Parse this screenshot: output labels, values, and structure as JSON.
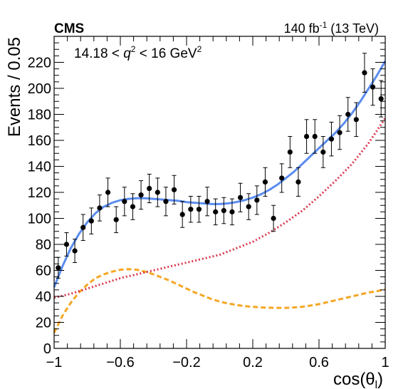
{
  "chart_data": {
    "type": "scatter",
    "experiment_label": "CMS",
    "luminosity_label": {
      "value": "140 fb",
      "exponent": "-1",
      "energy": "(13 TeV)"
    },
    "annotation": {
      "prefix": "14.18 < ",
      "variable": "q",
      "variable_exponent": "2",
      "suffix": " < 16 GeV",
      "unit_exponent": "2"
    },
    "xlabel": {
      "text": "cos(θ",
      "subscript": "l",
      "close": ")"
    },
    "ylabel": "Events / 0.05",
    "xlim": [
      -1,
      1
    ],
    "ylim": [
      0,
      240
    ],
    "x_ticks": [
      -1,
      -0.6,
      -0.2,
      0.2,
      0.6,
      1
    ],
    "x_tick_labels": [
      "−1",
      "−0.6",
      "−0.2",
      "0.2",
      "0.6",
      "1"
    ],
    "y_ticks": [
      0,
      20,
      40,
      60,
      80,
      100,
      120,
      140,
      160,
      180,
      200,
      220
    ],
    "y_tick_labels": [
      "0",
      "20",
      "40",
      "60",
      "80",
      "100",
      "120",
      "140",
      "160",
      "180",
      "200",
      "220"
    ],
    "grid": false,
    "series": [
      {
        "kind": "data",
        "style": "points-with-errorbars",
        "color": "#000000",
        "x": [
          -0.975,
          -0.925,
          -0.875,
          -0.825,
          -0.775,
          -0.725,
          -0.675,
          -0.625,
          -0.575,
          -0.525,
          -0.475,
          -0.425,
          -0.375,
          -0.325,
          -0.275,
          -0.225,
          -0.175,
          -0.125,
          -0.075,
          -0.025,
          0.025,
          0.075,
          0.125,
          0.175,
          0.225,
          0.275,
          0.325,
          0.375,
          0.425,
          0.475,
          0.525,
          0.575,
          0.625,
          0.675,
          0.725,
          0.775,
          0.825,
          0.875,
          0.925,
          0.975
        ],
        "y": [
          62,
          80,
          75,
          93,
          98,
          108,
          120,
          99,
          113,
          109,
          118,
          123,
          120,
          113,
          122,
          103,
          107,
          107,
          113,
          105,
          106,
          105,
          116,
          109,
          114,
          128,
          100,
          131,
          151,
          128,
          163,
          163,
          151,
          161,
          166,
          180,
          176,
          212,
          201,
          192
        ],
        "y_err": [
          8,
          9,
          9,
          10,
          10,
          10,
          11,
          10,
          11,
          10,
          11,
          11,
          11,
          11,
          11,
          10,
          10,
          10,
          11,
          10,
          10,
          10,
          11,
          10,
          11,
          11,
          10,
          11,
          12,
          11,
          13,
          13,
          12,
          13,
          13,
          13,
          13,
          15,
          14,
          14
        ]
      },
      {
        "kind": "total-fit",
        "style": "solid",
        "color": "#5b8def",
        "x": [
          -1,
          -0.95,
          -0.9,
          -0.85,
          -0.8,
          -0.75,
          -0.7,
          -0.65,
          -0.6,
          -0.55,
          -0.5,
          -0.45,
          -0.4,
          -0.35,
          -0.3,
          -0.25,
          -0.2,
          -0.15,
          -0.1,
          -0.05,
          0,
          0.05,
          0.1,
          0.15,
          0.2,
          0.25,
          0.3,
          0.35,
          0.4,
          0.45,
          0.5,
          0.55,
          0.6,
          0.65,
          0.7,
          0.75,
          0.8,
          0.85,
          0.9,
          0.95,
          1
        ],
        "y": [
          47,
          63,
          77,
          88,
          97,
          104,
          109,
          112,
          114,
          115,
          115.5,
          115.5,
          115,
          114.5,
          114,
          113.5,
          112.5,
          112,
          111.5,
          111,
          111,
          111.5,
          112.5,
          114,
          116,
          118.5,
          122,
          126,
          131,
          136,
          142,
          148,
          154,
          160,
          166,
          173,
          181,
          190,
          200,
          210,
          221
        ]
      },
      {
        "kind": "background-component",
        "style": "dotted",
        "color": "#d93a4e",
        "x": [
          -1,
          -0.9,
          -0.8,
          -0.7,
          -0.6,
          -0.5,
          -0.4,
          -0.3,
          -0.2,
          -0.1,
          0,
          0.1,
          0.2,
          0.3,
          0.4,
          0.5,
          0.6,
          0.7,
          0.8,
          0.9,
          1
        ],
        "y": [
          39,
          42,
          46,
          50,
          54,
          57,
          60,
          63,
          66,
          69,
          72,
          77,
          82,
          89,
          97,
          106,
          117,
          129,
          142,
          158,
          177
        ]
      },
      {
        "kind": "signal-component",
        "style": "dashed",
        "color": "#f5a623",
        "x": [
          -1,
          -0.95,
          -0.9,
          -0.85,
          -0.8,
          -0.75,
          -0.7,
          -0.65,
          -0.6,
          -0.55,
          -0.5,
          -0.45,
          -0.4,
          -0.35,
          -0.3,
          -0.25,
          -0.2,
          -0.15,
          -0.1,
          -0.05,
          0,
          0.05,
          0.1,
          0.15,
          0.2,
          0.25,
          0.3,
          0.35,
          0.4,
          0.45,
          0.5,
          0.55,
          0.6,
          0.65,
          0.7,
          0.75,
          0.8,
          0.85,
          0.9,
          0.95,
          1
        ],
        "y": [
          12,
          25,
          35,
          43,
          49,
          54,
          57,
          59,
          60.5,
          61,
          60.5,
          59,
          57,
          54.5,
          52,
          49,
          46,
          43,
          40.5,
          38,
          36,
          34.5,
          33.5,
          32.5,
          32,
          31.5,
          31.3,
          31.2,
          31.2,
          31.5,
          32,
          33,
          34,
          35.5,
          37,
          38.5,
          40,
          41.5,
          43,
          44,
          45.5
        ]
      }
    ]
  }
}
